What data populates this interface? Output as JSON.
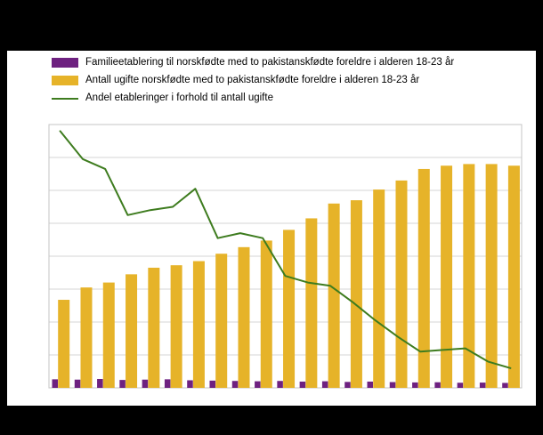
{
  "frame": {
    "background_color": "#000000",
    "panel_color": "#ffffff"
  },
  "legend": {
    "position": "top-left",
    "items": [
      {
        "label": "Familieetablering til norskfødte med to pakistanskfødte foreldre i alderen 18-23 år",
        "color": "#6e2180",
        "type": "bar"
      },
      {
        "label": "Antall ugifte norskfødte med to pakistanskfødte foreldre i alderen 18-23 år",
        "color": "#e6b329",
        "type": "bar"
      },
      {
        "label": "Andel etableringer i forhold til antall ugifte",
        "color": "#3e7c1f",
        "type": "line"
      }
    ]
  },
  "chart_data": {
    "type": "bar",
    "combo": "grouped bars with overlaid line on secondary axis",
    "x": [
      1,
      2,
      3,
      4,
      5,
      6,
      7,
      8,
      9,
      10,
      11,
      12,
      13,
      14,
      15,
      16,
      17,
      18,
      19,
      20,
      21
    ],
    "x_tick_labels_visible": false,
    "series": [
      {
        "name": "Familieetablering til norskfødte med to pakistanskfødte foreldre i alderen 18-23 år",
        "type": "bar",
        "axis": "left",
        "color": "#6e2180",
        "values": [
          52,
          50,
          54,
          48,
          50,
          52,
          46,
          44,
          42,
          40,
          42,
          38,
          40,
          36,
          38,
          35,
          33,
          34,
          31,
          32,
          30
        ]
      },
      {
        "name": "Antall ugifte norskfødte med to pakistanskfødte foreldre i alderen 18-23 år",
        "type": "bar",
        "axis": "left",
        "color": "#e6b329",
        "values": [
          535,
          610,
          640,
          690,
          730,
          745,
          770,
          815,
          855,
          895,
          960,
          1030,
          1120,
          1140,
          1205,
          1260,
          1330,
          1350,
          1360,
          1360,
          1350
        ]
      },
      {
        "name": "Andel etableringer i forhold til antall ugifte",
        "type": "line",
        "axis": "right",
        "color": "#3e7c1f",
        "values": [
          15.6,
          13.9,
          13.3,
          10.5,
          10.8,
          11.0,
          12.1,
          9.1,
          9.4,
          9.1,
          6.8,
          6.4,
          6.2,
          5.2,
          4.1,
          3.1,
          2.2,
          2.3,
          2.4,
          1.6,
          1.2
        ]
      }
    ],
    "left_axis": {
      "range": [
        0,
        1600
      ],
      "gridline_step": 200,
      "tick_labels_visible": false
    },
    "right_axis": {
      "range": [
        0,
        16
      ],
      "tick_labels_visible": false
    },
    "grid": {
      "horizontal": true,
      "color": "#d6d6d6"
    },
    "plot_border_color": "#c4c4c4",
    "title": "",
    "legend_position": "top-left"
  }
}
